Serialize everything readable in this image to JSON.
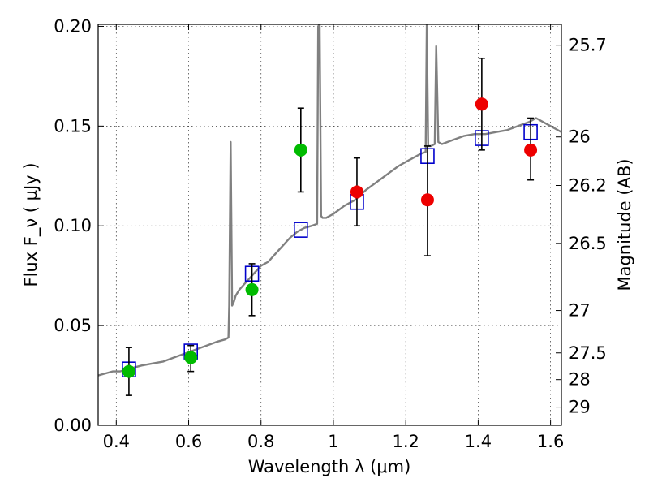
{
  "chart_data": {
    "type": "scatter",
    "xlabel": "Wavelength  λ (μm)",
    "ylabel": "Flux  F_ν  ( μJy )",
    "y2label": "Magnitude (AB)",
    "xlim": [
      0.35,
      1.63
    ],
    "ylim": [
      0.0,
      0.201
    ],
    "grid": true,
    "x_ticks": [
      0.4,
      0.6,
      0.8,
      1.0,
      1.2,
      1.4,
      1.6
    ],
    "x_tick_labels": [
      "0.4",
      "0.6",
      "0.8",
      "1",
      "1.2",
      "1.4",
      "1.6"
    ],
    "y_ticks": [
      0.0,
      0.05,
      0.1,
      0.15,
      0.2
    ],
    "y_tick_labels": [
      "0.00",
      "0.05",
      "0.10",
      "0.15",
      "0.20"
    ],
    "mag_ticks": [
      29,
      28,
      27.5,
      27,
      26.5,
      26.2,
      26,
      25.7
    ],
    "mag_tick_labels": [
      "29",
      "28",
      "27.5",
      "27",
      "26.5",
      "26.2",
      "26",
      "25.7"
    ],
    "colors": {
      "model": "#808080",
      "model_photometry": "#0000cc",
      "observed_green": "#00bb00",
      "observed_red": "#ee0000",
      "errorbar": "#000000"
    },
    "series": [
      {
        "kind": "line",
        "x": [
          0.35,
          0.37,
          0.39,
          0.41,
          0.43,
          0.45,
          0.47,
          0.5,
          0.53,
          0.56,
          0.59,
          0.62,
          0.65,
          0.68,
          0.7,
          0.71,
          0.712,
          0.716,
          0.72,
          0.725,
          0.73,
          0.74,
          0.75,
          0.76,
          0.77,
          0.78,
          0.79,
          0.8,
          0.82,
          0.84,
          0.86,
          0.88,
          0.9,
          0.92,
          0.94,
          0.955,
          0.958,
          0.962,
          0.966,
          0.97,
          0.98,
          1.0,
          1.03,
          1.06,
          1.09,
          1.12,
          1.15,
          1.18,
          1.21,
          1.24,
          1.255,
          1.258,
          1.262,
          1.27,
          1.28,
          1.284,
          1.29,
          1.3,
          1.33,
          1.36,
          1.39,
          1.42,
          1.45,
          1.48,
          1.51,
          1.54,
          1.56,
          1.58,
          1.6,
          1.63
        ],
        "y": [
          0.025,
          0.026,
          0.027,
          0.027,
          0.028,
          0.029,
          0.03,
          0.031,
          0.032,
          0.034,
          0.036,
          0.038,
          0.04,
          0.042,
          0.043,
          0.044,
          0.06,
          0.142,
          0.06,
          0.062,
          0.065,
          0.068,
          0.07,
          0.072,
          0.074,
          0.076,
          0.078,
          0.08,
          0.082,
          0.086,
          0.09,
          0.094,
          0.097,
          0.099,
          0.1,
          0.101,
          0.2,
          0.201,
          0.105,
          0.104,
          0.104,
          0.106,
          0.11,
          0.113,
          0.118,
          0.122,
          0.126,
          0.13,
          0.133,
          0.136,
          0.137,
          0.201,
          0.14,
          0.14,
          0.141,
          0.19,
          0.142,
          0.141,
          0.143,
          0.145,
          0.146,
          0.146,
          0.147,
          0.148,
          0.15,
          0.152,
          0.154,
          0.152,
          0.15,
          0.147
        ]
      },
      {
        "kind": "model_photometry",
        "x": [
          0.435,
          0.606,
          0.775,
          0.91,
          1.065,
          1.26,
          1.41,
          1.545
        ],
        "y": [
          0.028,
          0.037,
          0.076,
          0.098,
          0.112,
          0.135,
          0.144,
          0.147
        ]
      },
      {
        "kind": "observed",
        "color": "green",
        "x": [
          0.435,
          0.606,
          0.775,
          0.91
        ],
        "y": [
          0.027,
          0.034,
          0.068,
          0.138
        ],
        "err_low": [
          0.015,
          0.027,
          0.055,
          0.117
        ],
        "err_high": [
          0.039,
          0.04,
          0.081,
          0.159
        ]
      },
      {
        "kind": "observed",
        "color": "red",
        "x": [
          1.065,
          1.26,
          1.41,
          1.545
        ],
        "y": [
          0.117,
          0.113,
          0.161,
          0.138
        ],
        "err_low": [
          0.1,
          0.085,
          0.138,
          0.123
        ],
        "err_high": [
          0.134,
          0.14,
          0.184,
          0.154
        ]
      }
    ]
  }
}
